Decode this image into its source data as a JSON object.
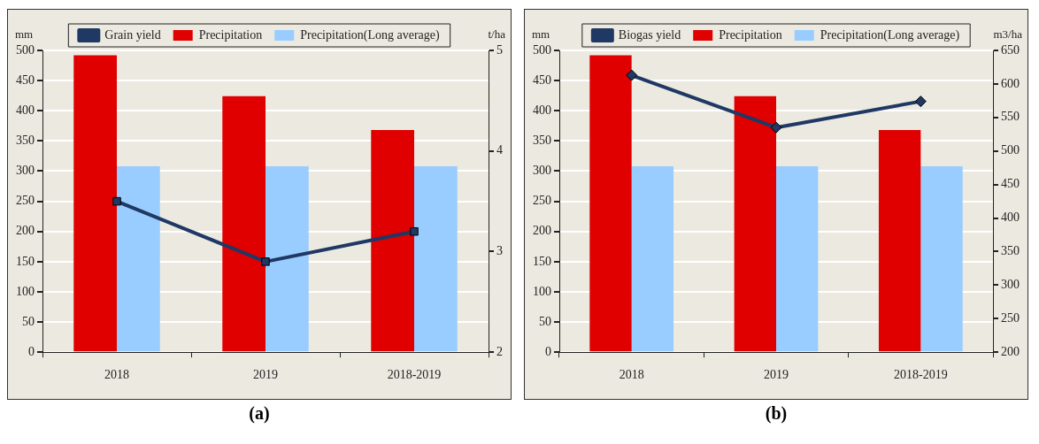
{
  "chart_data": [
    {
      "type": "bar",
      "categories": [
        "2018",
        "2019",
        "2018-2019"
      ],
      "ylabel": "mm",
      "y2label": "t/ha",
      "ylim": [
        0,
        500
      ],
      "yticks": [
        0,
        50,
        100,
        150,
        200,
        250,
        300,
        350,
        400,
        450,
        500
      ],
      "y2lim": [
        2,
        5
      ],
      "y2ticks": [
        2,
        3,
        4,
        5
      ],
      "grid": "y",
      "legend": "top",
      "marker": "square",
      "annotations": [
        "(a)"
      ],
      "series": [
        {
          "name": "Precipitation",
          "color": "#e00000",
          "values": [
            492,
            424,
            368
          ]
        },
        {
          "name": "Precipitation(Long average)",
          "color": "#99ccff",
          "values": [
            308,
            308,
            308
          ]
        },
        {
          "name": "Grain yield",
          "type": "line",
          "axis": "y2",
          "color": "#1f3864",
          "values": [
            3.5,
            2.9,
            3.2
          ]
        }
      ]
    },
    {
      "type": "bar",
      "categories": [
        "2018",
        "2019",
        "2018-2019"
      ],
      "ylabel": "mm",
      "y2label": "m3/ha",
      "ylim": [
        0,
        500
      ],
      "yticks": [
        0,
        50,
        100,
        150,
        200,
        250,
        300,
        350,
        400,
        450,
        500
      ],
      "y2lim": [
        200,
        650
      ],
      "y2ticks": [
        200,
        250,
        300,
        350,
        400,
        450,
        500,
        550,
        600,
        650
      ],
      "grid": "y",
      "legend": "top",
      "marker": "diamond",
      "annotations": [
        "(b)"
      ],
      "series": [
        {
          "name": "Precipitation",
          "color": "#e00000",
          "values": [
            492,
            424,
            368
          ]
        },
        {
          "name": "Precipitation(Long average)",
          "color": "#99ccff",
          "values": [
            308,
            308,
            308
          ]
        },
        {
          "name": "Biogas yield",
          "type": "line",
          "axis": "y2",
          "color": "#1f3864",
          "values": [
            613,
            535,
            574
          ]
        }
      ]
    }
  ]
}
